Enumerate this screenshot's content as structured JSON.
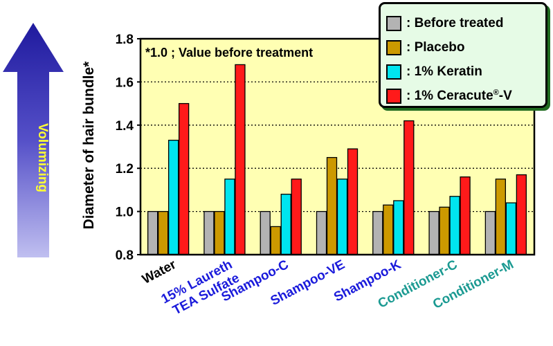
{
  "side_arrow_label": "Volumizing",
  "chart_data": {
    "type": "bar",
    "ylabel": "Diameter of hair bundle*",
    "annotation": "*1.0 ; Value before treatment",
    "ylim": [
      0.8,
      1.8
    ],
    "yticks": [
      "0.8",
      "1.0",
      "1.2",
      "1.4",
      "1.6",
      "1.8"
    ],
    "grid": "horizontal dotted",
    "legend_position": "top-right",
    "categories": [
      "Water",
      "15% Laureth\nTEA Sulfate",
      "Shampoo-C",
      "Shampoo-VE",
      "Shampoo-K",
      "Conditioner-C",
      "Conditioner-M"
    ],
    "category_label_colors": [
      "#000000",
      "#1a1adb",
      "#1a1adb",
      "#1a1adb",
      "#1a1adb",
      "#1b9a92",
      "#1b9a92"
    ],
    "series": [
      {
        "name": ": Before treated",
        "color": "#b3b3b3",
        "values": [
          1.0,
          1.0,
          1.0,
          1.0,
          1.0,
          1.0,
          1.0
        ]
      },
      {
        "name": ": Placebo",
        "color": "#cc9900",
        "values": [
          1.0,
          1.0,
          0.93,
          1.25,
          1.03,
          1.02,
          1.15
        ]
      },
      {
        "name": ": 1% Keratin",
        "color": "#00e5ef",
        "values": [
          1.33,
          1.15,
          1.08,
          1.15,
          1.05,
          1.07,
          1.04
        ]
      },
      {
        "name": ": 1% Ceracute®-V",
        "color": "#ff1a1a",
        "values": [
          1.5,
          1.68,
          1.15,
          1.29,
          1.42,
          1.16,
          1.17
        ]
      }
    ]
  }
}
